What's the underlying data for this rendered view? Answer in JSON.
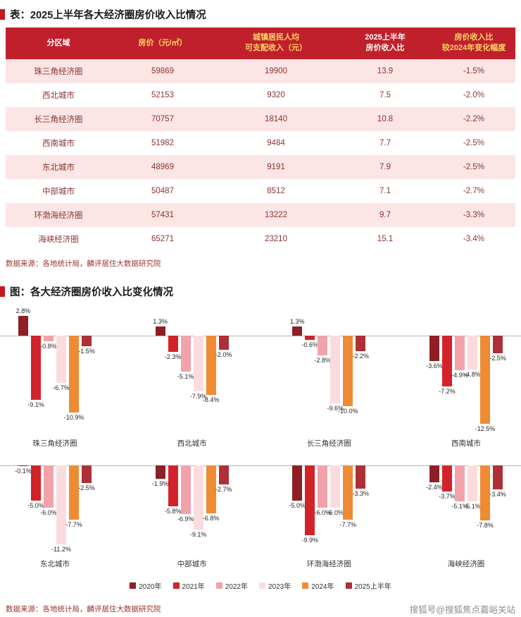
{
  "page": {
    "table_title": "表：2025上半年各大经济圈房价收入比情况",
    "chart_title": "图：各大经济圈房价收入比变化情况",
    "source_note": "数据来源：各地统计局，麟评居住大数据研究院",
    "watermark": "搜狐号@搜狐焦点嘉峪关站",
    "accent_red": "#c0202c"
  },
  "table": {
    "headers": [
      "分区域",
      "房价（元/㎡）",
      "城镇居民人均\n可支配收入（元）",
      "2025上半年\n房价收入比",
      "房价收入比\n较2024年变化幅度"
    ],
    "header_bg": "#c0202c",
    "header_text_colors": [
      "#ffffff",
      "#ffd763",
      "#ffd763",
      "#ffffff",
      "#ffd763"
    ],
    "row_alt_bg": "#fbe5e5",
    "body_text_color": "#8a3530",
    "rows": [
      [
        "珠三角经济圈",
        "59869",
        "19900",
        "13.9",
        "-1.5%"
      ],
      [
        "西北城市",
        "52153",
        "9320",
        "7.5",
        "-2.0%"
      ],
      [
        "长三角经济圈",
        "70757",
        "18140",
        "10.8",
        "-2.2%"
      ],
      [
        "西南城市",
        "51982",
        "9484",
        "7.7",
        "-2.5%"
      ],
      [
        "东北城市",
        "48969",
        "9191",
        "7.9",
        "-2.5%"
      ],
      [
        "中部城市",
        "50487",
        "8512",
        "7.1",
        "-2.7%"
      ],
      [
        "环渤海经济圈",
        "57431",
        "13222",
        "9.7",
        "-3.3%"
      ],
      [
        "海峡经济圈",
        "65271",
        "23210",
        "15.1",
        "-3.4%"
      ]
    ]
  },
  "chart_data": {
    "type": "bar",
    "title": "图：各大经济圈房价收入比变化情况",
    "value_suffix": "%",
    "legend_position": "bottom",
    "series": [
      {
        "name": "2020年",
        "color": "#8e1f24"
      },
      {
        "name": "2021年",
        "color": "#d2232a"
      },
      {
        "name": "2022年",
        "color": "#f2a2aa"
      },
      {
        "name": "2023年",
        "color": "#fadcdf"
      },
      {
        "name": "2024年",
        "color": "#ef8b33"
      },
      {
        "name": "2025上半年",
        "color": "#ad2f38"
      }
    ],
    "panels": [
      {
        "groups": [
          {
            "label": "珠三角经济圈",
            "values": [
              2.8,
              -9.1,
              -0.8,
              -6.7,
              -10.9,
              -1.5
            ]
          },
          {
            "label": "西北城市",
            "values": [
              1.3,
              -2.3,
              -5.1,
              -7.9,
              -8.4,
              -2.0
            ]
          },
          {
            "label": "长三角经济圈",
            "values": [
              1.3,
              -0.6,
              -2.8,
              -9.6,
              -10.0,
              -2.2
            ]
          },
          {
            "label": "西南城市",
            "values": [
              -3.6,
              -7.2,
              -4.9,
              -4.8,
              -12.5,
              -2.5
            ]
          }
        ]
      },
      {
        "groups": [
          {
            "label": "东北城市",
            "values": [
              -0.1,
              -5.0,
              -6.0,
              -11.2,
              -7.7,
              -2.5
            ]
          },
          {
            "label": "中部城市",
            "values": [
              -1.9,
              -5.8,
              -6.9,
              -9.1,
              -6.8,
              -2.7
            ]
          },
          {
            "label": "环渤海经济圈",
            "values": [
              -5.0,
              -9.9,
              -6.0,
              -6.0,
              -7.7,
              -3.3
            ]
          },
          {
            "label": "海峡经济圈",
            "values": [
              -2.4,
              -3.7,
              -5.1,
              -5.1,
              -7.8,
              -3.4
            ]
          }
        ]
      }
    ]
  }
}
